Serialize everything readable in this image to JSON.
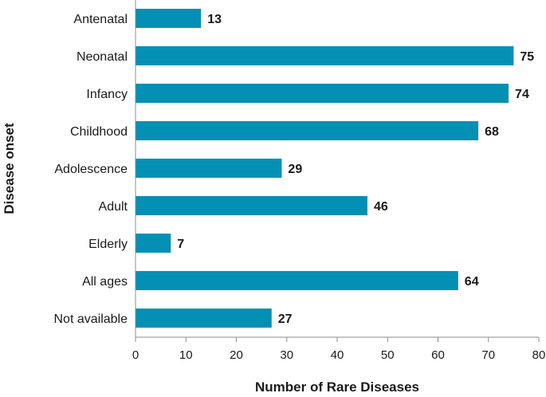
{
  "chart_data": {
    "type": "bar",
    "orientation": "horizontal",
    "categories": [
      "Antenatal",
      "Neonatal",
      "Infancy",
      "Childhood",
      "Adolescence",
      "Adult",
      "Elderly",
      "All ages",
      "Not available"
    ],
    "values": [
      13,
      75,
      74,
      68,
      29,
      46,
      7,
      64,
      27
    ],
    "value_labels": [
      "13",
      "75",
      "74",
      "68",
      "29",
      "46",
      "7",
      "64",
      "27"
    ],
    "xlabel": "Number of Rare Diseases",
    "ylabel": "Disease onset",
    "xlim": [
      0,
      80
    ],
    "xticks": [
      "0",
      "10",
      "20",
      "30",
      "40",
      "50",
      "60",
      "70",
      "80"
    ],
    "grid": false,
    "bar_color": "#0490b4"
  }
}
